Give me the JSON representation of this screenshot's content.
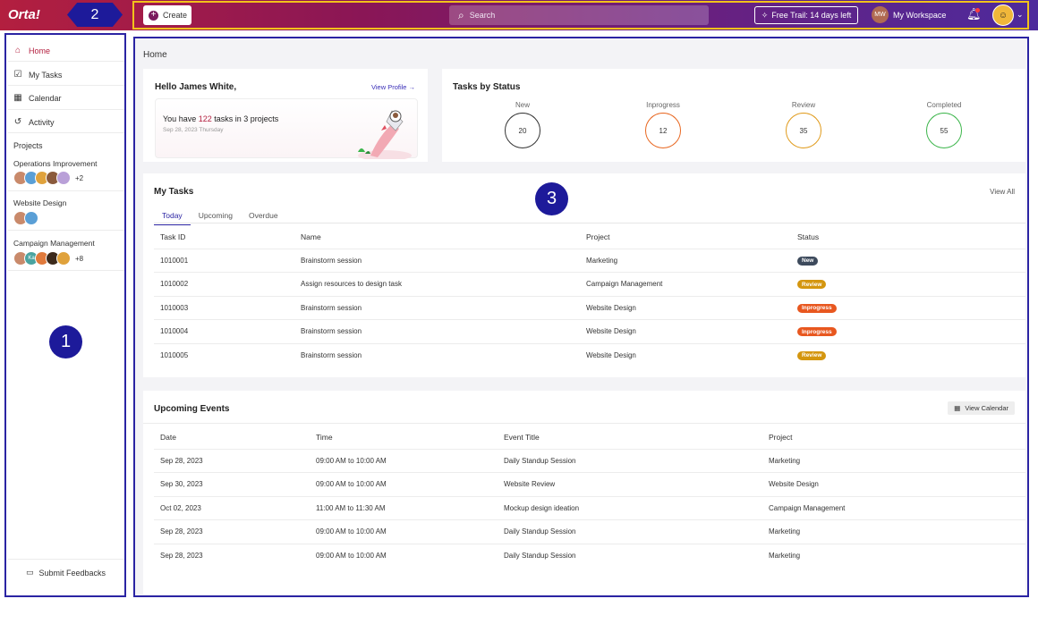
{
  "app": {
    "logo": "Orta!"
  },
  "annotations": {
    "one": "1",
    "two": "2",
    "three": "3"
  },
  "header": {
    "create_label": "Create",
    "search_placeholder": "Search",
    "trial_label": "Free Trail: 14 days left",
    "workspace_initials": "MW",
    "workspace_label": "My Workspace"
  },
  "sidebar": {
    "items": [
      {
        "label": "Home",
        "icon": "home-icon",
        "active": true
      },
      {
        "label": "My Tasks",
        "icon": "checkbox-icon",
        "active": false
      },
      {
        "label": "Calendar",
        "icon": "calendar-icon",
        "active": false
      },
      {
        "label": "Activity",
        "icon": "history-icon",
        "active": false
      }
    ],
    "projects_heading": "Projects",
    "projects": [
      {
        "name": "Operations Improvement",
        "more": "+2"
      },
      {
        "name": "Website Design",
        "more": ""
      },
      {
        "name": "Campaign Management",
        "more": "+8",
        "initials": "Ka"
      }
    ],
    "feedback_label": "Submit Feedbacks"
  },
  "main": {
    "page_title": "Home",
    "hello": {
      "greeting": "Hello James White,",
      "view_profile": "View Profile →",
      "tasks_prefix": "You have ",
      "tasks_count": "122",
      "tasks_suffix": " tasks in 3 projects",
      "date": "Sep 28, 2023 Thursday"
    },
    "status": {
      "title": "Tasks by Status",
      "items": [
        {
          "label": "New",
          "value": "20",
          "color": "#333333"
        },
        {
          "label": "Inprogress",
          "value": "12",
          "color": "#e8661f"
        },
        {
          "label": "Review",
          "value": "35",
          "color": "#e09a1a"
        },
        {
          "label": "Completed",
          "value": "55",
          "color": "#3bb54a"
        }
      ]
    },
    "my_tasks": {
      "title": "My Tasks",
      "view_all": "View All",
      "tabs": [
        "Today",
        "Upcoming",
        "Overdue"
      ],
      "columns": [
        "Task ID",
        "Name",
        "Project",
        "Status"
      ],
      "rows": [
        {
          "id": "1010001",
          "name": "Brainstorm session",
          "project": "Marketing",
          "status": "New"
        },
        {
          "id": "1010002",
          "name": "Assign resources to design task",
          "project": "Campaign Management",
          "status": "Review"
        },
        {
          "id": "1010003",
          "name": "Brainstorm session",
          "project": "Website Design",
          "status": "Inprogress"
        },
        {
          "id": "1010004",
          "name": "Brainstorm session",
          "project": "Website Design",
          "status": "Inprogress"
        },
        {
          "id": "1010005",
          "name": "Brainstorm session",
          "project": "Website Design",
          "status": "Review"
        }
      ],
      "status_colors": {
        "New": "#3d4a5c",
        "Review": "#d4960f",
        "Inprogress": "#e8571f"
      }
    },
    "events": {
      "title": "Upcoming Events",
      "view_calendar": "View Calendar",
      "columns": [
        "Date",
        "Time",
        "Event Title",
        "Project"
      ],
      "rows": [
        {
          "date": "Sep 28, 2023",
          "time": "09:00 AM to 10:00 AM",
          "title": "Daily Standup Session",
          "project": "Marketing"
        },
        {
          "date": "Sep 30, 2023",
          "time": "09:00 AM to 10:00 AM",
          "title": "Website Review",
          "project": "Website Design"
        },
        {
          "date": "Oct 02, 2023",
          "time": "11:00 AM to 11:30 AM",
          "title": "Mockup design ideation",
          "project": "Campaign Management"
        },
        {
          "date": "Sep 28, 2023",
          "time": "09:00 AM to 10:00 AM",
          "title": "Daily Standup Session",
          "project": "Marketing"
        },
        {
          "date": "Sep 28, 2023",
          "time": "09:00 AM to 10:00 AM",
          "title": "Daily Standup Session",
          "project": "Marketing"
        }
      ]
    }
  }
}
